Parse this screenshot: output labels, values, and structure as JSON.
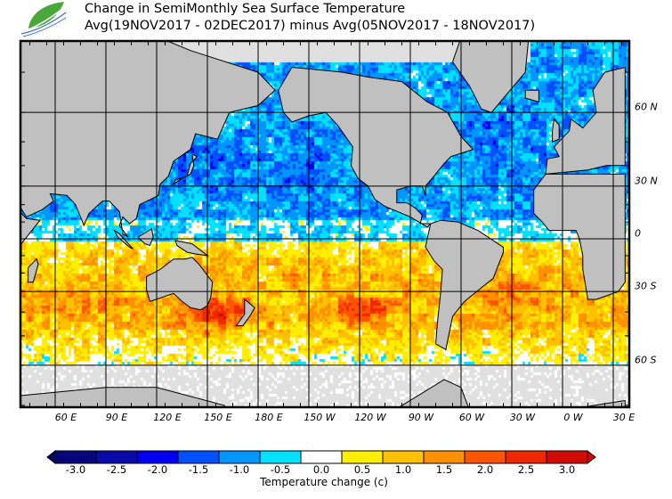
{
  "title": {
    "line1": "Change in SemiMonthly Sea Surface Temperature",
    "line2": "Avg(19NOV2017 - 02DEC2017) minus Avg(05NOV2017 - 18NOV2017)"
  },
  "logo": {
    "icon": "leaf-wave-logo",
    "color": "#4aa83a"
  },
  "map": {
    "projection": "mercator",
    "land_color": "#c0c0c0",
    "sea_ice_color": "#e0e0e0",
    "lon_labels": [
      "60 E",
      "90 E",
      "120 E",
      "150 E",
      "180 E",
      "150 W",
      "120 W",
      "90 W",
      "60 W",
      "30 W",
      "0 W",
      "30 E"
    ],
    "lat_labels": [
      "60 N",
      "30 N",
      "0",
      "30 S",
      "60 S"
    ]
  },
  "colorbar": {
    "title": "Temperature change  (c)",
    "labels": [
      "-3.0",
      "-2.5",
      "-2.0",
      "-1.5",
      "-1.0",
      "-0.5",
      "0.0",
      "0.5",
      "1.0",
      "1.5",
      "2.0",
      "2.5",
      "3.0"
    ],
    "colors": [
      "#06067a",
      "#0a0aa8",
      "#0000f0",
      "#0050ff",
      "#0096ff",
      "#00e0ff",
      "#ffffff",
      "#ffee00",
      "#ffc000",
      "#ff9000",
      "#ff5500",
      "#f02800",
      "#d20a00"
    ],
    "under_color": "#000060",
    "over_color": "#e00000"
  }
}
